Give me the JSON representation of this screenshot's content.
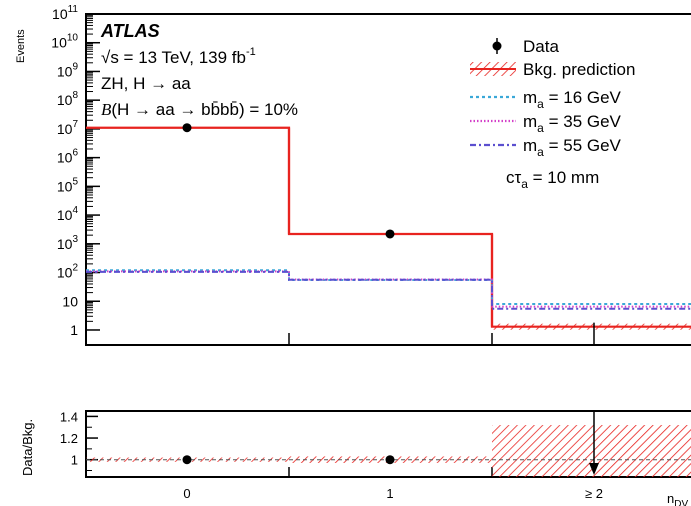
{
  "header": {
    "experiment": "ATLAS",
    "energy_prefix": "√s = 13 TeV, 139 fb",
    "energy_sup": "-1",
    "process": "ZH, H → aa",
    "branching_prefix": "B",
    "branching_rest": "(H → aa → bb̄bb̄) = 10%",
    "lifetime": "cτ",
    "lifetime_sub": "a",
    "lifetime_value": " = 10 mm"
  },
  "legend": {
    "data_label": "Data",
    "bkg_label": "Bkg. prediction",
    "signals": [
      {
        "prefix": "m",
        "sub": "a",
        "suffix": " = 16 GeV",
        "color": "#3aa8d8"
      },
      {
        "prefix": "m",
        "sub": "a",
        "suffix": " = 35 GeV",
        "color": "#d33fc8"
      },
      {
        "prefix": "m",
        "sub": "a",
        "suffix": " = 55 GeV",
        "color": "#5b4fcf"
      }
    ]
  },
  "chart_data": [
    {
      "type": "line",
      "ylabel": "Events",
      "yscale": "log",
      "ylim": [
        0.3,
        100000000000
      ],
      "yticks": [
        {
          "base": "1",
          "exp": ""
        },
        {
          "base": "10",
          "exp": ""
        },
        {
          "base": "10",
          "exp": "2"
        },
        {
          "base": "10",
          "exp": "3"
        },
        {
          "base": "10",
          "exp": "4"
        },
        {
          "base": "10",
          "exp": "5"
        },
        {
          "base": "10",
          "exp": "6"
        },
        {
          "base": "10",
          "exp": "7"
        },
        {
          "base": "10",
          "exp": "8"
        },
        {
          "base": "10",
          "exp": "9"
        },
        {
          "base": "10",
          "exp": "10"
        },
        {
          "base": "10",
          "exp": "11"
        }
      ],
      "categories": [
        "0",
        "1",
        "≥ 2"
      ],
      "xlabel": "n_DV",
      "data": [
        11000000,
        2200,
        0
      ],
      "background": [
        11000000,
        2200,
        1.3
      ],
      "signals": [
        {
          "name": "m_a = 16 GeV",
          "values": [
            120,
            55,
            8
          ],
          "color": "#3aa8d8"
        },
        {
          "name": "m_a = 35 GeV",
          "values": [
            110,
            57,
            6.5
          ],
          "color": "#d33fc8"
        },
        {
          "name": "m_a = 55 GeV",
          "values": [
            105,
            56,
            5.5
          ],
          "color": "#5b4fcf"
        }
      ],
      "colors": {
        "data": "#000000",
        "bkg": "#e8231f"
      }
    },
    {
      "type": "scatter",
      "ylabel": "Data/Bkg.",
      "ylim": [
        0.84,
        1.45
      ],
      "yticks": [
        "1",
        "1.2",
        "1.4"
      ],
      "categories": [
        "0",
        "1",
        "≥ 2"
      ],
      "ratio": [
        1.0,
        1.0,
        null
      ],
      "band_halfwidth": [
        0.02,
        0.03,
        0.32
      ],
      "reference_line": 1
    }
  ]
}
